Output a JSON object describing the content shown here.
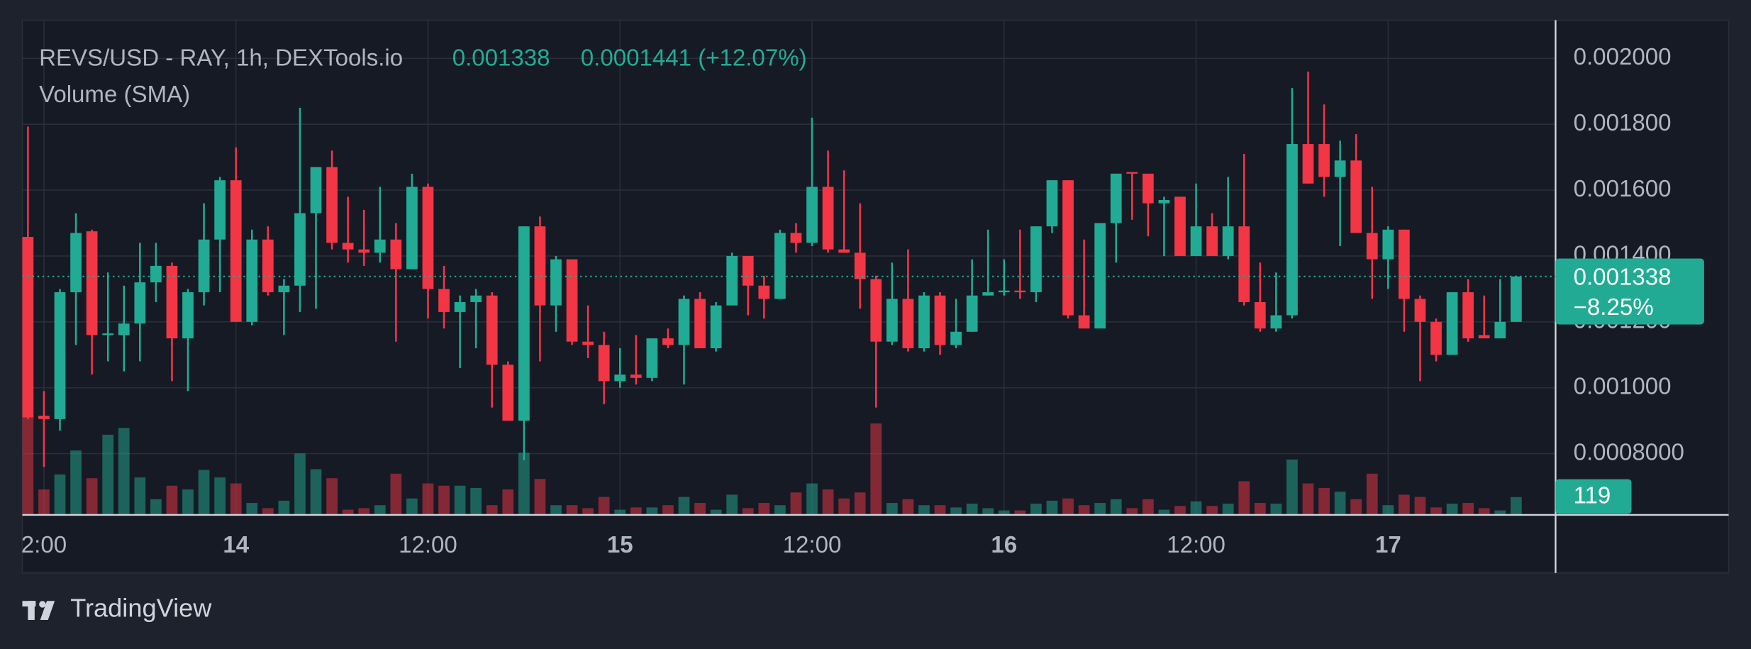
{
  "chart_data": {
    "type": "candlestick",
    "title": "REVS/USD - RAY, 1h, DEXTools.io",
    "change_label": "0.0001441 (+12.07%)",
    "volume_title": "Volume (SMA)",
    "last_change_label": "−8.25%",
    "up_color": "#22ab94",
    "down_color": "#f23645",
    "grid": true,
    "categories": [
      null,
      "2:00",
      null,
      null,
      null,
      null,
      null,
      null,
      null,
      null,
      null,
      null,
      null,
      "14",
      null,
      null,
      null,
      null,
      null,
      null,
      null,
      null,
      null,
      null,
      null,
      "12:00",
      null,
      null,
      null,
      null,
      null,
      null,
      null,
      null,
      null,
      null,
      null,
      "15",
      null,
      null,
      null,
      null,
      null,
      null,
      null,
      null,
      null,
      null,
      null,
      "12:00",
      null,
      null,
      null,
      null,
      null,
      null,
      null,
      null,
      null,
      null,
      null,
      "16",
      null,
      null,
      null,
      null,
      null,
      null,
      null,
      null,
      null,
      null,
      null,
      "12:00",
      null,
      null,
      null,
      null,
      null,
      null,
      null,
      null,
      null,
      null,
      null,
      "17",
      null,
      null,
      null,
      null,
      null,
      null,
      null,
      null
    ],
    "open": [
      0.001458,
      0.000915,
      0.000905,
      0.00129,
      0.001475,
      0.00116,
      0.00116,
      0.001195,
      0.00132,
      0.00137,
      0.00115,
      0.00129,
      0.00145,
      0.00163,
      0.0012,
      0.00145,
      0.00129,
      0.00131,
      0.00153,
      0.00167,
      0.00144,
      0.00142,
      0.00141,
      0.00145,
      0.00136,
      0.00161,
      0.0013,
      0.00123,
      0.00126,
      0.00128,
      0.00107,
      0.0009,
      0.00149,
      0.00125,
      0.00139,
      0.00114,
      0.00113,
      0.00102,
      0.00104,
      0.00103,
      0.00115,
      0.00113,
      0.00127,
      0.00112,
      0.00125,
      0.0014,
      0.00131,
      0.00127,
      0.00147,
      0.00144,
      0.00161,
      0.00142,
      0.00141,
      0.00133,
      0.00114,
      0.00127,
      0.00112,
      0.00128,
      0.00113,
      0.00117,
      0.00128,
      0.00129,
      0.001295,
      0.00129,
      0.00149,
      0.00163,
      0.00122,
      0.00118,
      0.0015,
      0.001655,
      0.00165,
      0.00156,
      0.00158,
      0.0014,
      0.00149,
      0.0014,
      0.00149,
      0.00126,
      0.00118,
      0.00122,
      0.00174,
      0.00174,
      0.00164,
      0.00169,
      0.00147,
      0.00139,
      0.00148,
      0.00127,
      0.0012,
      0.0011,
      0.00129,
      0.00116,
      0.00115,
      0.0012
    ],
    "high": [
      0.001793,
      0.00099,
      0.0013,
      0.00153,
      0.00148,
      0.00135,
      0.00131,
      0.00144,
      0.00144,
      0.00138,
      0.0013,
      0.00156,
      0.00164,
      0.00173,
      0.00148,
      0.00149,
      0.00133,
      0.00185,
      0.00167,
      0.00172,
      0.00158,
      0.00154,
      0.00161,
      0.0015,
      0.00165,
      0.00162,
      0.00137,
      0.00128,
      0.0013,
      0.00129,
      0.00108,
      0.00149,
      0.00152,
      0.0014,
      0.00139,
      0.00125,
      0.00117,
      0.00112,
      0.00116,
      0.00115,
      0.00118,
      0.00128,
      0.00129,
      0.00126,
      0.00141,
      0.0014,
      0.00134,
      0.00148,
      0.0015,
      0.00182,
      0.00172,
      0.00166,
      0.00156,
      0.00134,
      0.00138,
      0.00142,
      0.00129,
      0.00129,
      0.00127,
      0.00139,
      0.00148,
      0.00139,
      0.00148,
      0.00149,
      0.00163,
      0.00163,
      0.00145,
      0.0015,
      0.00165,
      0.001655,
      0.00165,
      0.00158,
      0.00158,
      0.00162,
      0.00153,
      0.00164,
      0.00171,
      0.00138,
      0.00135,
      0.00191,
      0.00196,
      0.00186,
      0.00175,
      0.00177,
      0.00161,
      0.00149,
      0.00148,
      0.00128,
      0.00121,
      0.00129,
      0.00133,
      0.00128,
      0.00133,
      0.00134
    ],
    "low": [
      0.000905,
      0.00076,
      0.00087,
      0.00113,
      0.00104,
      0.00108,
      0.00105,
      0.00108,
      0.00126,
      0.00102,
      0.00099,
      0.00125,
      0.00129,
      0.0012,
      0.00119,
      0.00128,
      0.00116,
      0.00123,
      0.00124,
      0.00142,
      0.00138,
      0.00137,
      0.00138,
      0.00114,
      0.00136,
      0.00121,
      0.00118,
      0.00106,
      0.00112,
      0.00094,
      0.0009,
      0.00078,
      0.00108,
      0.00117,
      0.00113,
      0.00109,
      0.00095,
      0.001,
      0.00101,
      0.00102,
      0.00112,
      0.00101,
      0.00112,
      0.00111,
      0.00125,
      0.00122,
      0.00121,
      0.00127,
      0.00141,
      0.00143,
      0.00141,
      0.00141,
      0.00124,
      0.00094,
      0.00113,
      0.00111,
      0.00111,
      0.0011,
      0.00112,
      0.00117,
      0.00128,
      0.00128,
      0.00127,
      0.00126,
      0.00147,
      0.00121,
      0.00118,
      0.00118,
      0.00138,
      0.00151,
      0.00146,
      0.0014,
      0.0014,
      0.0014,
      0.0014,
      0.00139,
      0.00125,
      0.00117,
      0.00117,
      0.00121,
      0.00162,
      0.00158,
      0.00143,
      0.00147,
      0.00127,
      0.0013,
      0.00117,
      0.00102,
      0.00108,
      0.0011,
      0.00114,
      0.00115,
      0.00115,
      0.0012
    ],
    "close": [
      0.00091,
      0.000905,
      0.00129,
      0.00147,
      0.00116,
      0.001165,
      0.001195,
      0.00132,
      0.00137,
      0.00115,
      0.00129,
      0.00145,
      0.00163,
      0.0012,
      0.00145,
      0.00129,
      0.00131,
      0.00153,
      0.00167,
      0.00144,
      0.00142,
      0.00141,
      0.00145,
      0.00136,
      0.00161,
      0.0013,
      0.00123,
      0.00126,
      0.00128,
      0.00107,
      0.0009,
      0.00149,
      0.00125,
      0.00139,
      0.00114,
      0.00113,
      0.00102,
      0.00104,
      0.00103,
      0.00115,
      0.00113,
      0.00127,
      0.00112,
      0.00125,
      0.0014,
      0.00131,
      0.00127,
      0.00147,
      0.00144,
      0.00161,
      0.00142,
      0.00141,
      0.00133,
      0.00114,
      0.00127,
      0.00112,
      0.00128,
      0.00113,
      0.00117,
      0.00128,
      0.00129,
      0.001295,
      0.00129,
      0.00149,
      0.00163,
      0.00122,
      0.00118,
      0.0015,
      0.00165,
      0.00165,
      0.00156,
      0.00157,
      0.0014,
      0.00149,
      0.0014,
      0.00149,
      0.00126,
      0.00118,
      0.00122,
      0.00174,
      0.00162,
      0.00164,
      0.00169,
      0.00147,
      0.00139,
      0.00148,
      0.00127,
      0.0012,
      0.0011,
      0.00129,
      0.00115,
      0.00115,
      0.0012,
      0.001338
    ],
    "volume": [
      670,
      170,
      270,
      430,
      245,
      535,
      580,
      250,
      105,
      195,
      170,
      300,
      250,
      210,
      80,
      45,
      95,
      410,
      305,
      245,
      35,
      45,
      65,
      275,
      110,
      210,
      195,
      195,
      180,
      65,
      170,
      415,
      240,
      65,
      65,
      45,
      120,
      35,
      50,
      50,
      65,
      120,
      80,
      35,
      135,
      45,
      80,
      65,
      150,
      210,
      170,
      110,
      150,
      610,
      80,
      105,
      65,
      65,
      50,
      75,
      45,
      30,
      30,
      75,
      95,
      110,
      65,
      80,
      105,
      45,
      105,
      35,
      60,
      90,
      60,
      75,
      225,
      80,
      75,
      370,
      210,
      180,
      155,
      105,
      275,
      65,
      135,
      120,
      50,
      75,
      80,
      45,
      30,
      119
    ],
    "ylim": [
      0.000614,
      0.002116
    ],
    "yticks": [
      {
        "value": 0.002,
        "label": "0.002000"
      },
      {
        "value": 0.0018,
        "label": "0.001800"
      },
      {
        "value": 0.0016,
        "label": "0.001600"
      },
      {
        "value": 0.0014,
        "label": "0.001400"
      },
      {
        "value": 0.0012,
        "label": "0.001200"
      },
      {
        "value": 0.001,
        "label": "0.001000"
      },
      {
        "value": 0.0008,
        "label": "0.0008000"
      }
    ],
    "volume_ylim": [
      0,
      3300
    ]
  },
  "brand": "TradingView"
}
